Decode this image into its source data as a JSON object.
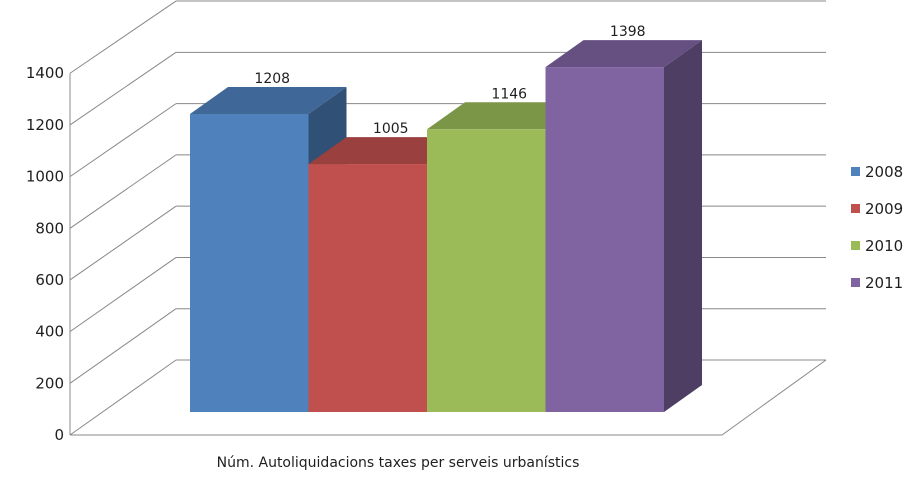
{
  "chart_data": {
    "type": "bar",
    "categories": [
      "Núm. Autoliquidacions taxes per serveis urbanístics"
    ],
    "series": [
      {
        "name": "2008",
        "values": [
          1208
        ],
        "color": "#4F81BD"
      },
      {
        "name": "2009",
        "values": [
          1005
        ],
        "color": "#C0504D"
      },
      {
        "name": "2010",
        "values": [
          1146
        ],
        "color": "#9BBB59"
      },
      {
        "name": "2011",
        "values": [
          1398
        ],
        "color": "#8064A2"
      }
    ],
    "y_ticks": [
      "0",
      "200",
      "400",
      "600",
      "800",
      "1000",
      "1200",
      "1400"
    ],
    "ylim": [
      0,
      1400
    ],
    "xlabel": "Núm. Autoliquidacions taxes per serveis urbanístics",
    "ylabel": "",
    "title": "",
    "grid": true,
    "legend_position": "right",
    "style": "3d-clustered-column"
  }
}
